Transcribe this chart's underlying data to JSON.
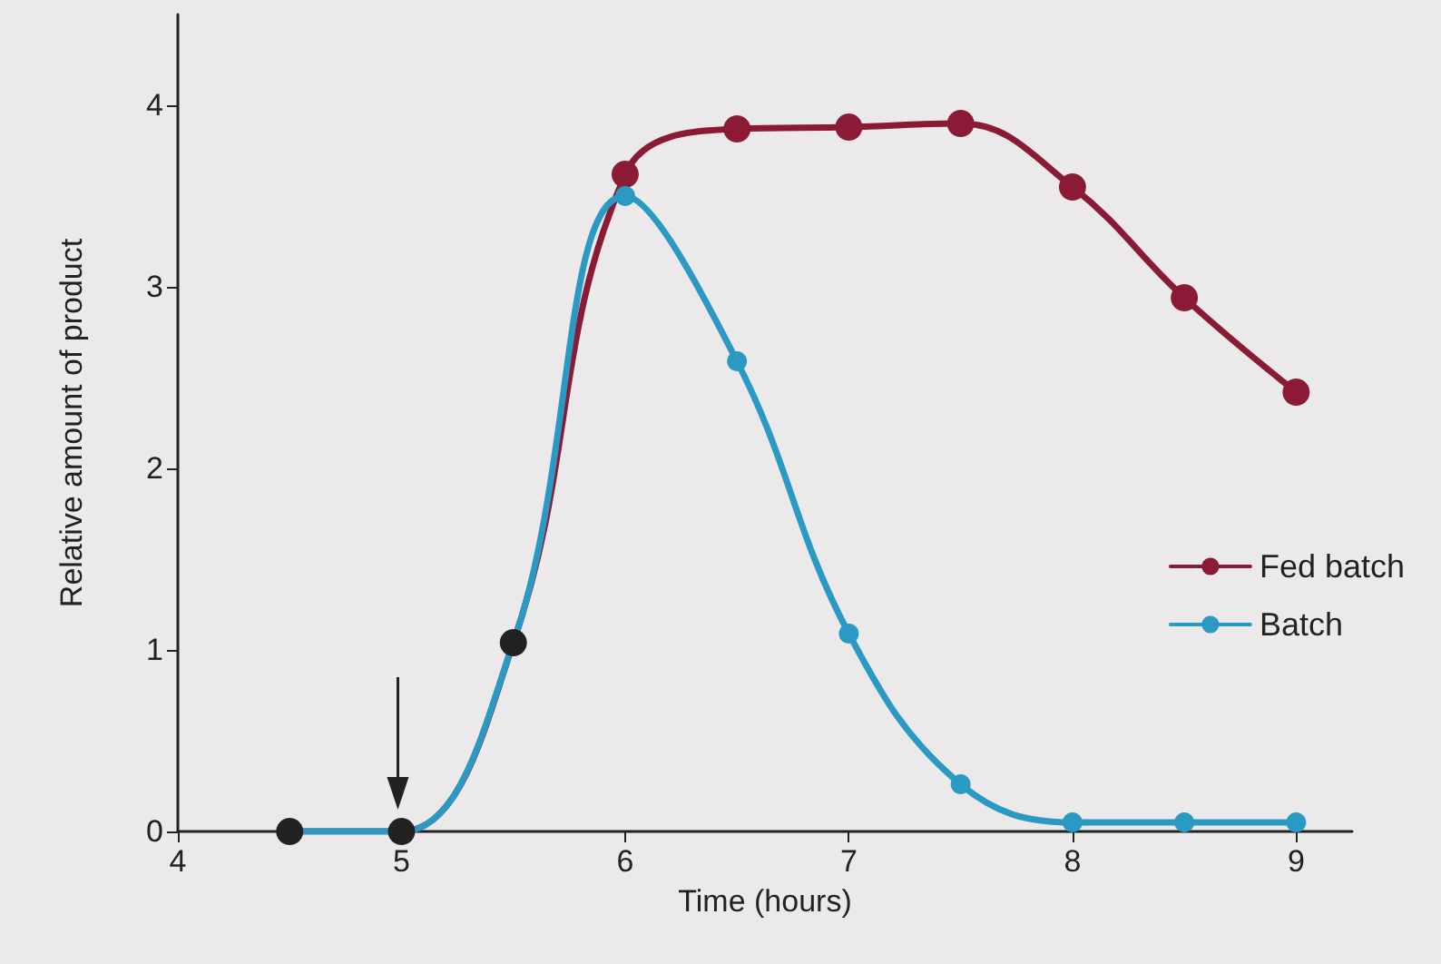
{
  "chart_data": {
    "type": "line",
    "xlabel": "Time (hours)",
    "ylabel": "Relative amount of product",
    "x": [
      4.5,
      5,
      5.5,
      6,
      6.5,
      7,
      7.5,
      8,
      8.5,
      9
    ],
    "series": [
      {
        "name": "Fed batch",
        "color": "#8b1a35",
        "colors": [
          "#222222",
          "#222222",
          "#222222",
          "#8b1a35",
          "#8b1a35",
          "#8b1a35",
          "#8b1a35",
          "#8b1a35",
          "#8b1a35",
          "#8b1a35"
        ],
        "values": [
          0,
          0,
          1.04,
          3.62,
          3.87,
          3.88,
          3.9,
          3.55,
          2.94,
          2.42
        ]
      },
      {
        "name": "Batch",
        "color": "#2a9ac4",
        "colors": [
          "#222222",
          "#222222",
          "#222222",
          "#2a9ac4",
          "#2a9ac4",
          "#2a9ac4",
          "#2a9ac4",
          "#2a9ac4",
          "#2a9ac4",
          "#2a9ac4"
        ],
        "values": [
          0,
          0,
          1.04,
          3.5,
          2.59,
          1.09,
          0.26,
          0.05,
          0.05,
          0.05
        ]
      }
    ],
    "xlim": [
      4,
      9.25
    ],
    "xticks": [
      4,
      5,
      6,
      7,
      8,
      9
    ],
    "ylim": [
      0,
      4.5
    ],
    "yticks": [
      0,
      1,
      2,
      3,
      4
    ],
    "grid": false,
    "legend": "right",
    "marker": "circle",
    "line_style": "solid"
  }
}
